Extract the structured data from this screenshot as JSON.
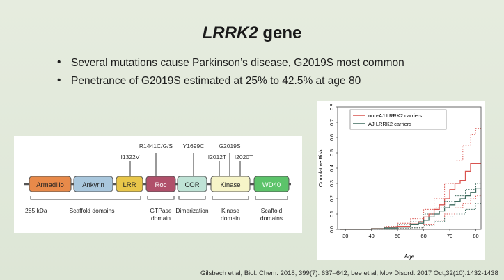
{
  "slide": {
    "title_italic": "LRRK2",
    "title_rest": " gene",
    "bullets": [
      "Several mutations cause Parkinson’s disease, G2019S most common",
      "Penetrance of G2019S estimated at 25% to 42.5% at age 80"
    ],
    "citation": "Gilsbach et al, Biol. Chem. 2018; 399(7): 637–642; Lee et al, Mov Disord. 2017 Oct;32(10):1432-1438"
  },
  "diagram": {
    "size_label": "285 kDa",
    "domains": [
      {
        "name": "Armadillo",
        "color": "#e88a4a"
      },
      {
        "name": "Ankyrin",
        "color": "#a9c7dd"
      },
      {
        "name": "LRR",
        "color": "#e8c64a"
      },
      {
        "name": "Roc",
        "color": "#b0506a"
      },
      {
        "name": "COR",
        "color": "#bfe3d6"
      },
      {
        "name": "Kinase",
        "color": "#f6f4c8"
      },
      {
        "name": "WD40",
        "color": "#5cc36a"
      }
    ],
    "mutations": [
      "I1322V",
      "R1441C/G/S",
      "Y1699C",
      "G2019S",
      "I2012T",
      "I2020T"
    ],
    "groups": [
      {
        "label_1": "Scaffold domains",
        "label_2": ""
      },
      {
        "label_1": "GTPase",
        "label_2": "domain"
      },
      {
        "label_1": "Dimerization",
        "label_2": ""
      },
      {
        "label_1": "Kinase",
        "label_2": "domain"
      },
      {
        "label_1": "Scaffold",
        "label_2": "domains"
      }
    ]
  },
  "chart_data": {
    "type": "line",
    "xlabel": "Age",
    "ylabel": "Cumulative Risk",
    "xlim": [
      27,
      82
    ],
    "ylim": [
      0,
      0.8
    ],
    "x_ticks": [
      30,
      40,
      50,
      60,
      70,
      80
    ],
    "y_ticks": [
      0.0,
      0.1,
      0.2,
      0.3,
      0.4,
      0.5,
      0.6,
      0.7,
      0.8
    ],
    "legend_position": "top-left",
    "grid": false,
    "series": [
      {
        "name": "non-AJ LRRK2 carriers",
        "color": "#d9534f",
        "style": "solid",
        "x": [
          28,
          40,
          45,
          50,
          55,
          58,
          60,
          62,
          64,
          66,
          68,
          70,
          72,
          74,
          76,
          78,
          80,
          82
        ],
        "y": [
          0.0,
          0.005,
          0.01,
          0.02,
          0.035,
          0.05,
          0.08,
          0.1,
          0.13,
          0.16,
          0.2,
          0.26,
          0.3,
          0.32,
          0.38,
          0.43,
          0.43,
          0.43
        ]
      },
      {
        "name": "AJ LRRK2 carriers",
        "color": "#3f6b5f",
        "style": "solid",
        "x": [
          28,
          40,
          45,
          50,
          55,
          58,
          60,
          62,
          64,
          66,
          68,
          70,
          72,
          74,
          76,
          78,
          80,
          82
        ],
        "y": [
          0.0,
          0.004,
          0.008,
          0.015,
          0.03,
          0.04,
          0.06,
          0.08,
          0.1,
          0.12,
          0.14,
          0.16,
          0.18,
          0.2,
          0.22,
          0.24,
          0.27,
          0.27
        ]
      },
      {
        "name": "",
        "color": "#d9534f",
        "style": "dotted",
        "x": [
          28,
          45,
          50,
          55,
          60,
          64,
          68,
          72,
          75,
          78,
          80,
          82
        ],
        "y": [
          0.0,
          0.02,
          0.04,
          0.07,
          0.13,
          0.2,
          0.3,
          0.45,
          0.55,
          0.62,
          0.66,
          0.66
        ]
      },
      {
        "name": "",
        "color": "#d9534f",
        "style": "dotted",
        "x": [
          28,
          50,
          55,
          60,
          64,
          68,
          72,
          75,
          78,
          80,
          82
        ],
        "y": [
          0.0,
          0.005,
          0.01,
          0.03,
          0.06,
          0.1,
          0.14,
          0.17,
          0.2,
          0.22,
          0.22
        ]
      },
      {
        "name": "",
        "color": "#3f6b5f",
        "style": "dotted",
        "x": [
          28,
          45,
          50,
          55,
          60,
          64,
          68,
          72,
          76,
          80,
          82
        ],
        "y": [
          0.0,
          0.015,
          0.03,
          0.05,
          0.1,
          0.14,
          0.18,
          0.22,
          0.26,
          0.3,
          0.3
        ]
      },
      {
        "name": "",
        "color": "#3f6b5f",
        "style": "dotted",
        "x": [
          28,
          50,
          55,
          60,
          64,
          68,
          72,
          76,
          80,
          82
        ],
        "y": [
          0.0,
          0.005,
          0.01,
          0.025,
          0.05,
          0.08,
          0.1,
          0.13,
          0.17,
          0.17
        ]
      }
    ]
  }
}
